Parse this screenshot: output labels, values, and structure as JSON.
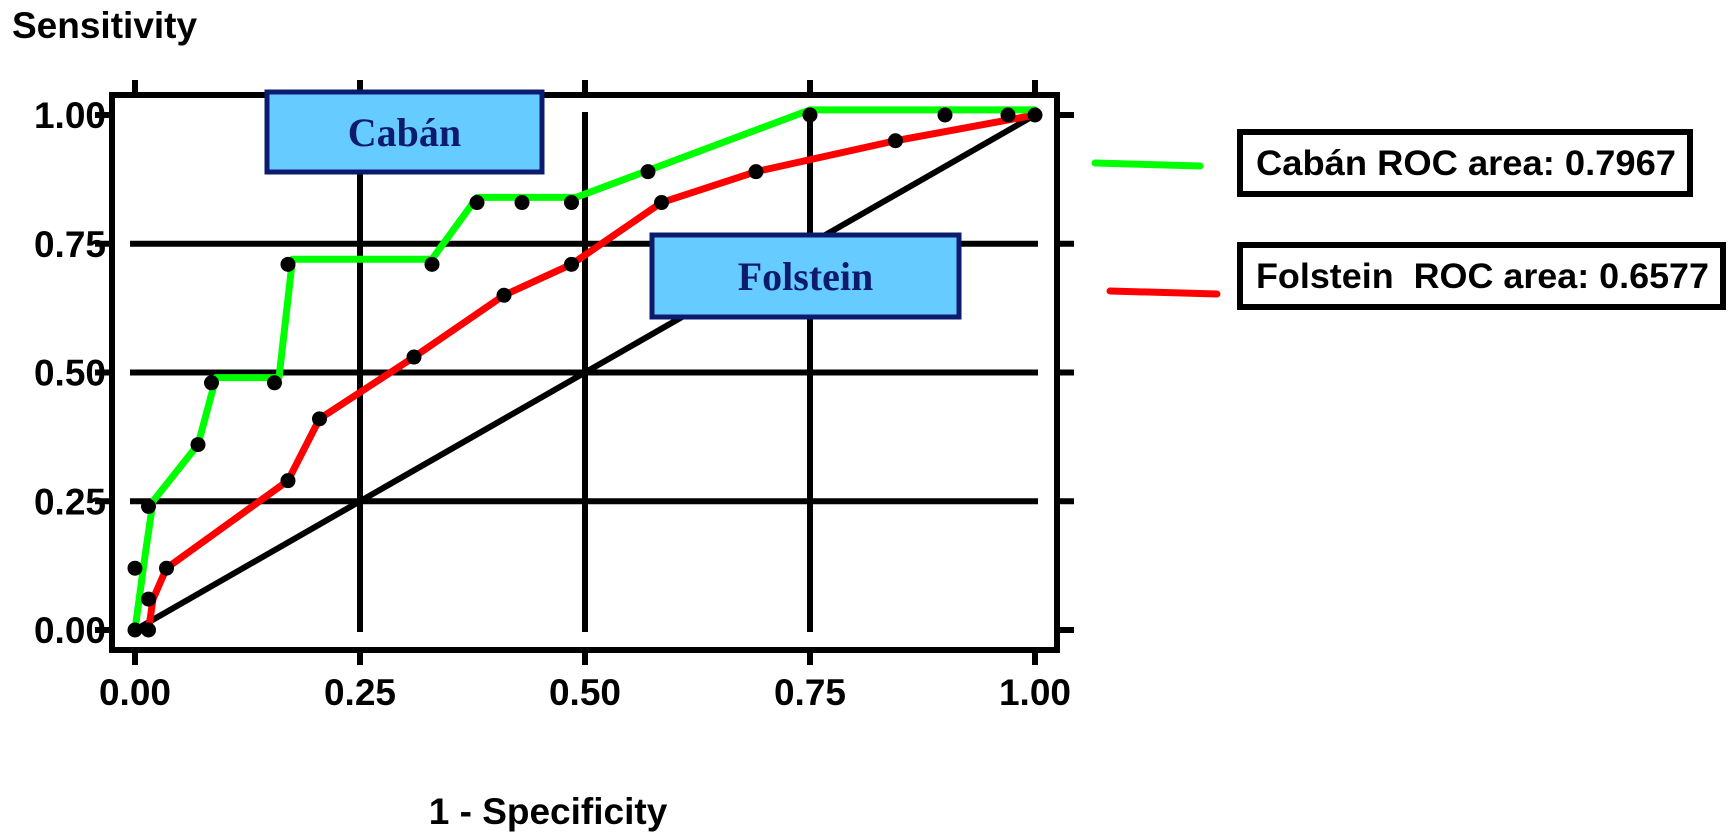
{
  "chart_data": {
    "type": "line",
    "ylabel": "Sensitivity",
    "xlabel": "1 - Specificity",
    "xlim": [
      0,
      1
    ],
    "ylim": [
      0,
      1
    ],
    "xticks": [
      "0.00",
      "0.25",
      "0.50",
      "0.75",
      "1.00"
    ],
    "yticks": [
      "0.00",
      "0.25",
      "0.50",
      "0.75",
      "1.00"
    ],
    "grid": true,
    "legend_position": "right",
    "annotations": [
      {
        "text": "Cabán",
        "fill": "#66ccff",
        "border": "#0d1b6e"
      },
      {
        "text": "Folstein",
        "fill": "#66ccff",
        "border": "#0d1b6e"
      }
    ],
    "series": [
      {
        "name": "Cabán",
        "legend_text": "Cabán ROC area: 0.7967",
        "roc_area": 0.7967,
        "color": "#00ff00",
        "x": [
          0.0,
          0.01,
          0.02,
          0.07,
          0.09,
          0.16,
          0.175,
          0.33,
          0.38,
          0.49,
          0.75,
          1.0
        ],
        "y": [
          0.0,
          0.13,
          0.25,
          0.36,
          0.49,
          0.49,
          0.72,
          0.72,
          0.84,
          0.84,
          1.01,
          1.01
        ]
      },
      {
        "name": "Folstein",
        "legend_text": "Folstein  ROC area: 0.6577",
        "roc_area": 0.6577,
        "color": "#ff0000",
        "x": [
          0.0,
          0.015,
          0.02,
          0.035,
          0.17,
          0.205,
          0.31,
          0.41,
          0.485,
          0.585,
          0.69,
          0.845,
          1.0
        ],
        "y": [
          0.0,
          0.0,
          0.06,
          0.12,
          0.29,
          0.41,
          0.53,
          0.65,
          0.71,
          0.83,
          0.89,
          0.95,
          1.0
        ]
      },
      {
        "name": "",
        "color": "#000000",
        "x": [
          0,
          1
        ],
        "y": [
          0,
          1
        ]
      }
    ],
    "points": [
      [
        0.0,
        0.0
      ],
      [
        0.015,
        0.0
      ],
      [
        0.0,
        0.12
      ],
      [
        0.015,
        0.06
      ],
      [
        0.035,
        0.12
      ],
      [
        0.015,
        0.24
      ],
      [
        0.07,
        0.36
      ],
      [
        0.085,
        0.48
      ],
      [
        0.155,
        0.48
      ],
      [
        0.17,
        0.71
      ],
      [
        0.17,
        0.29
      ],
      [
        0.205,
        0.41
      ],
      [
        0.31,
        0.53
      ],
      [
        0.33,
        0.71
      ],
      [
        0.38,
        0.83
      ],
      [
        0.43,
        0.83
      ],
      [
        0.485,
        0.83
      ],
      [
        0.41,
        0.65
      ],
      [
        0.485,
        0.71
      ],
      [
        0.57,
        0.89
      ],
      [
        0.585,
        0.83
      ],
      [
        0.69,
        0.89
      ],
      [
        0.75,
        1.0
      ],
      [
        0.845,
        0.95
      ],
      [
        0.9,
        1.0
      ],
      [
        0.97,
        1.0
      ],
      [
        1.0,
        1.0
      ]
    ]
  }
}
